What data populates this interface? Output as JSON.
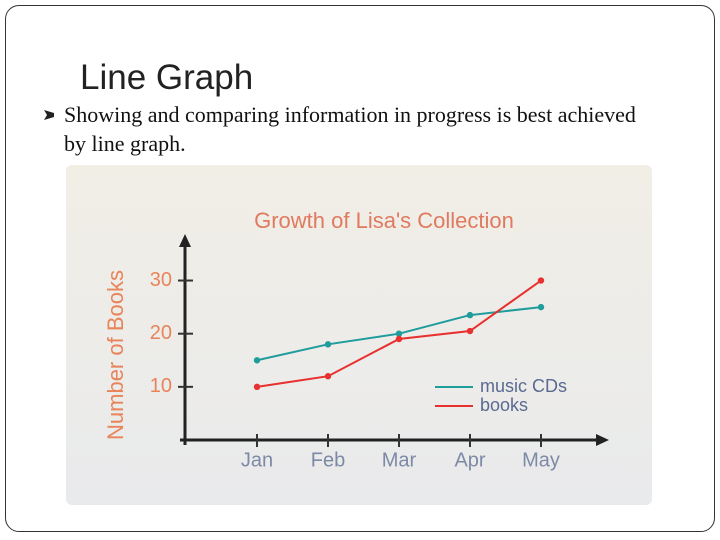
{
  "slide": {
    "title": "Line Graph",
    "bullet": "Showing and comparing information in progress is best achieved by line graph."
  },
  "chart_data": {
    "type": "line",
    "title": "Growth of Lisa's  Collection",
    "y_label": "Number of Books",
    "categories": [
      "Jan",
      "Feb",
      "Mar",
      "Apr",
      "May"
    ],
    "series": [
      {
        "name": "music CDs",
        "color": "#1f9c9c",
        "values": [
          15,
          18,
          20,
          23.5,
          25
        ]
      },
      {
        "name": "books",
        "color": "#e8302e",
        "values": [
          10,
          12,
          19,
          20.5,
          30
        ]
      }
    ],
    "ylim": [
      0,
      38
    ],
    "yticks": [
      10,
      20,
      30
    ],
    "grid": false
  }
}
